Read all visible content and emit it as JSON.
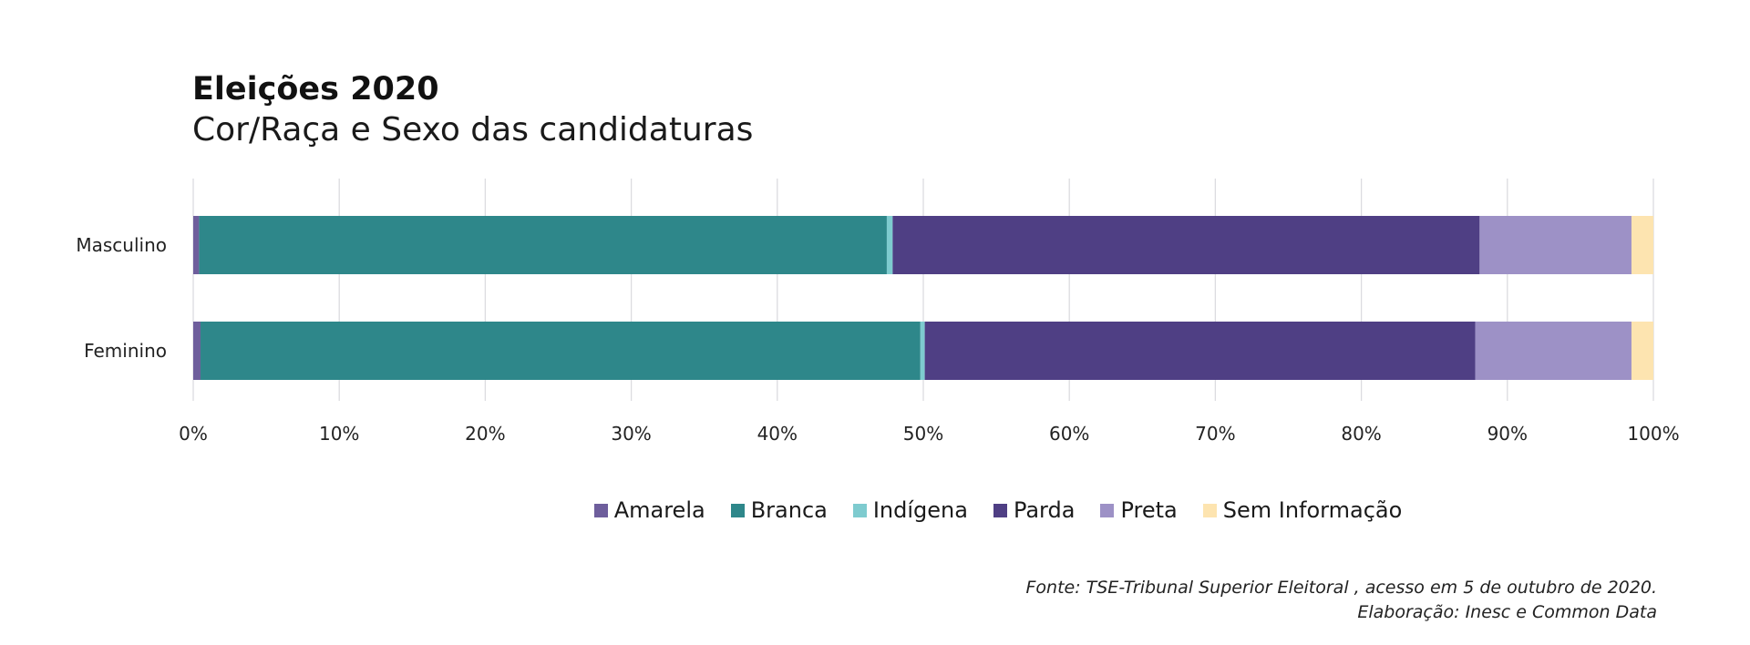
{
  "chart_data": {
    "type": "bar",
    "orientation": "horizontal",
    "stacked": true,
    "title": "Eleições 2020",
    "subtitle": "Cor/Raça e Sexo das candidaturas",
    "categories": [
      "Masculino",
      "Feminino"
    ],
    "series": [
      {
        "name": "Amarela",
        "color": "#6e5e9c",
        "values": [
          0.4,
          0.5
        ]
      },
      {
        "name": "Branca",
        "color": "#2e878a",
        "values": [
          47.1,
          49.3
        ]
      },
      {
        "name": "Indígena",
        "color": "#7ecbcf",
        "values": [
          0.4,
          0.3
        ]
      },
      {
        "name": "Parda",
        "color": "#4f3f84",
        "values": [
          40.2,
          37.7
        ]
      },
      {
        "name": "Preta",
        "color": "#9d91c6",
        "values": [
          10.4,
          10.7
        ]
      },
      {
        "name": "Sem Informação",
        "color": "#fde4b0",
        "values": [
          1.5,
          1.5
        ]
      }
    ],
    "xlim": [
      0,
      100
    ],
    "x_ticks": [
      "0%",
      "10%",
      "20%",
      "30%",
      "40%",
      "50%",
      "60%",
      "70%",
      "80%",
      "90%",
      "100%"
    ],
    "grid": "vertical",
    "legend_position": "bottom"
  },
  "source": {
    "line1": "Fonte: TSE-Tribunal Superior Eleitoral , acesso em 5 de outubro de 2020.",
    "line2": "Elaboração: Inesc e Common Data"
  }
}
